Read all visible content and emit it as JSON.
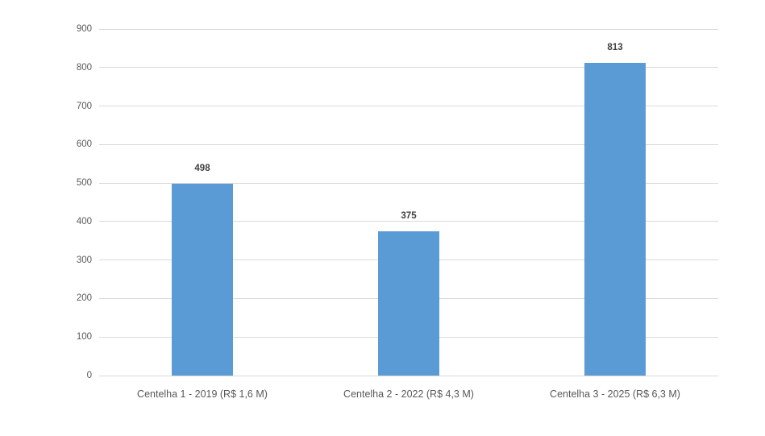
{
  "chart_data": {
    "type": "bar",
    "title": "",
    "xlabel": "",
    "ylabel": "",
    "categories": [
      "Centelha 1 - 2019 (R$ 1,6 M)",
      "Centelha 2 - 2022 (R$ 4,3 M)",
      "Centelha 3 - 2025 (R$ 6,3 M)"
    ],
    "values": [
      498,
      375,
      813
    ],
    "data_labels": [
      "498",
      "375",
      "813"
    ],
    "ylim": [
      0,
      900
    ],
    "ytick_step": 100,
    "ytick_labels": [
      "0",
      "100",
      "200",
      "300",
      "400",
      "500",
      "600",
      "700",
      "800",
      "900"
    ],
    "grid": "horizontal",
    "legend": "none",
    "colors": {
      "bar": "#5B9BD5",
      "gridline": "#D9D9D9",
      "axis_text": "#595959",
      "data_label_text": "#404040",
      "background": "#FFFFFF"
    }
  }
}
